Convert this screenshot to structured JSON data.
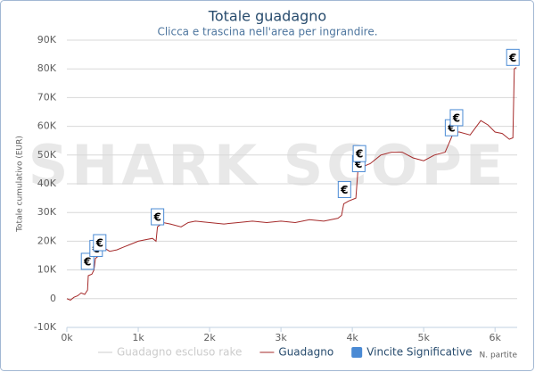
{
  "chart_data": {
    "type": "line",
    "title": "Totale guadagno",
    "subtitle": "Clicca e trascina nell'area per ingrandire.",
    "watermark": "SHARK SCOPE",
    "y_label": "Totale cumulativo (EUR)",
    "x_label": "N. partite",
    "x": [
      0,
      50,
      100,
      150,
      200,
      250,
      290,
      300,
      350,
      380,
      400,
      450,
      480,
      500,
      600,
      700,
      800,
      900,
      1000,
      1100,
      1200,
      1250,
      1270,
      1350,
      1450,
      1600,
      1700,
      1800,
      2000,
      2200,
      2400,
      2600,
      2800,
      3000,
      3200,
      3400,
      3600,
      3800,
      3850,
      3880,
      3950,
      4050,
      4080,
      4150,
      4250,
      4400,
      4550,
      4700,
      4850,
      5000,
      5150,
      5300,
      5370,
      5420,
      5500,
      5650,
      5800,
      5900,
      6000,
      6100,
      6200,
      6250,
      6270,
      6300
    ],
    "series": [
      {
        "name": "Guadagno escluso rake",
        "color": "#cccccc",
        "visible": false
      },
      {
        "name": "Guadagno",
        "color": "#a52a2a",
        "visible": true,
        "values": [
          0,
          -500,
          500,
          1000,
          2000,
          1500,
          3000,
          8000,
          8500,
          10000,
          14000,
          15000,
          16000,
          18000,
          16500,
          17000,
          18000,
          19000,
          20000,
          20500,
          21000,
          20000,
          25000,
          26500,
          26000,
          25000,
          26500,
          27000,
          26500,
          26000,
          26500,
          27000,
          26500,
          27000,
          26500,
          27500,
          27000,
          28000,
          29000,
          33000,
          34000,
          35000,
          45000,
          46000,
          47000,
          50000,
          51000,
          51000,
          49000,
          48000,
          50000,
          51000,
          55000,
          58000,
          58000,
          57000,
          62000,
          60500,
          58000,
          57500,
          55500,
          56000,
          80000,
          80500
        ]
      }
    ],
    "flags": {
      "name": "Vincite Significative",
      "color": "#4a8ad4",
      "label": "€",
      "x": [
        290,
        410,
        460,
        1270,
        3890,
        4090,
        4100,
        5390,
        5460,
        6250
      ],
      "y": [
        13000,
        17500,
        19500,
        28500,
        38000,
        47000,
        50500,
        59500,
        63000,
        84000
      ]
    },
    "xlim": [
      0,
      6310
    ],
    "ylim": [
      -10000,
      90000
    ],
    "xticks": [
      {
        "value": 0,
        "label": "0k"
      },
      {
        "value": 1000,
        "label": "1k"
      },
      {
        "value": 2000,
        "label": "2k"
      },
      {
        "value": 3000,
        "label": "3k"
      },
      {
        "value": 4000,
        "label": "4k"
      },
      {
        "value": 5000,
        "label": "5k"
      },
      {
        "value": 6000,
        "label": "6k"
      }
    ],
    "yticks": [
      {
        "value": -10000,
        "label": "-10K"
      },
      0,
      {
        "value": 10000,
        "label": "10K"
      },
      {
        "value": 20000,
        "label": "20K"
      },
      {
        "value": 30000,
        "label": "30K"
      },
      {
        "value": 40000,
        "label": "40K"
      },
      {
        "value": 50000,
        "label": "50K"
      },
      {
        "value": 60000,
        "label": "60K"
      },
      {
        "value": 70000,
        "label": "70K"
      },
      {
        "value": 80000,
        "label": "80K"
      },
      {
        "value": 90000,
        "label": "90K"
      }
    ],
    "grid": true
  }
}
